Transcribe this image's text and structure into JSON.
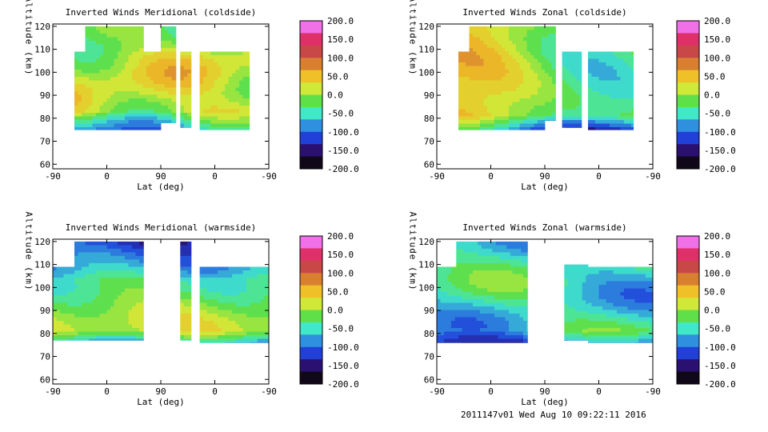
{
  "colorbar": {
    "labels": [
      "200.0",
      "150.0",
      "100.0",
      "50.0",
      "0.0",
      "-50.0",
      "-100.0",
      "-150.0",
      "-200.0"
    ],
    "colors": [
      "#f070e8",
      "#e0306a",
      "#c84848",
      "#d88030",
      "#f0c028",
      "#d0e838",
      "#60e048",
      "#40e8c8",
      "#3090e0",
      "#2040d8",
      "#2a1070",
      "#100818"
    ]
  },
  "footer_text": "2011147v01 Wed Aug 10 09:22:11 2016",
  "chart_data": [
    {
      "type": "heatmap",
      "title": "Inverted Winds Meridional (coldside)",
      "xlabel": "Lat (deg)",
      "ylabel": "Altitude (km)",
      "x_ticks": [
        "-90",
        "0",
        "90",
        "0",
        "-90"
      ],
      "y_ticks": [
        "60",
        "70",
        "80",
        "90",
        "100",
        "110",
        "120"
      ],
      "ylim": [
        58,
        121
      ],
      "colorbar_range": [
        -200,
        200
      ],
      "grid": false
    },
    {
      "type": "heatmap",
      "title": "Inverted Winds Zonal (coldside)",
      "xlabel": "Lat (deg)",
      "ylabel": "Altitude (km)",
      "x_ticks": [
        "-90",
        "0",
        "90",
        "0",
        "-90"
      ],
      "y_ticks": [
        "60",
        "70",
        "80",
        "90",
        "100",
        "110",
        "120"
      ],
      "ylim": [
        58,
        121
      ],
      "colorbar_range": [
        -200,
        200
      ],
      "grid": false
    },
    {
      "type": "heatmap",
      "title": "Inverted Winds Meridional (warmside)",
      "xlabel": "Lat (deg)",
      "ylabel": "Altitude (km)",
      "x_ticks": [
        "-90",
        "0",
        "90",
        "0",
        "-90"
      ],
      "y_ticks": [
        "60",
        "70",
        "80",
        "90",
        "100",
        "110",
        "120"
      ],
      "ylim": [
        58,
        121
      ],
      "colorbar_range": [
        -200,
        200
      ],
      "grid": false
    },
    {
      "type": "heatmap",
      "title": "Inverted Winds Zonal (warmside)",
      "xlabel": "Lat (deg)",
      "ylabel": "Altitude (km)",
      "x_ticks": [
        "-90",
        "0",
        "90",
        "0",
        "-90"
      ],
      "y_ticks": [
        "60",
        "70",
        "80",
        "90",
        "100",
        "110",
        "120"
      ],
      "ylim": [
        58,
        121
      ],
      "colorbar_range": [
        -200,
        200
      ],
      "grid": false
    }
  ]
}
